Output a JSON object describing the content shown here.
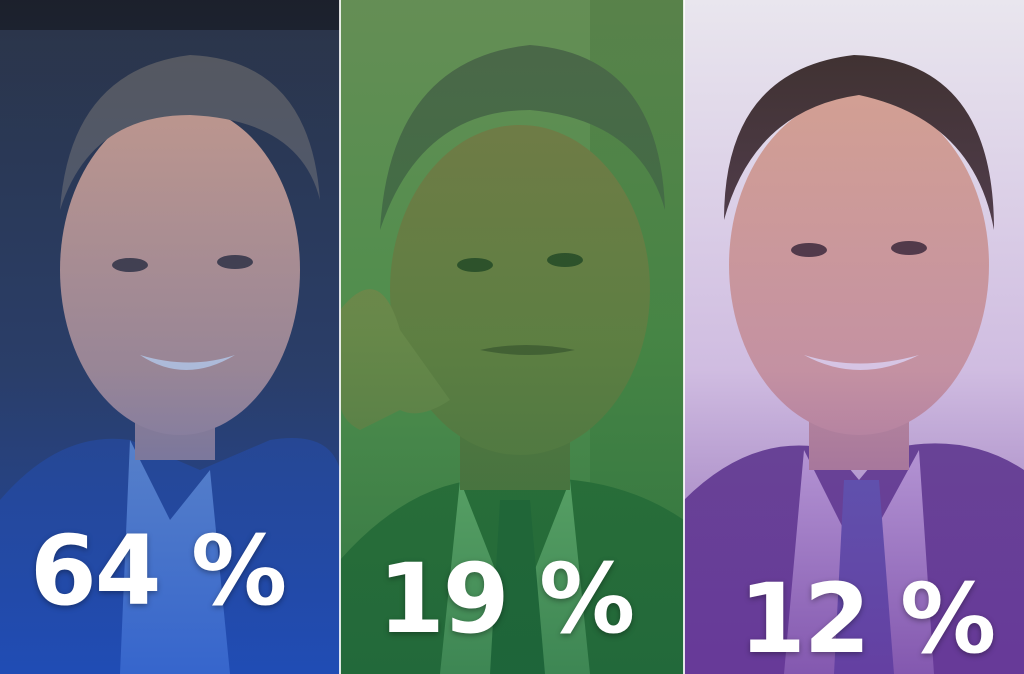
{
  "panels": [
    {
      "percentage": "64 %",
      "tint_color": "#2a5bd6",
      "subject": "man-in-blue-suit-smiling"
    },
    {
      "percentage": "19 %",
      "tint_color": "#2f8f4a",
      "subject": "man-hand-on-temple"
    },
    {
      "percentage": "12 %",
      "tint_color": "#6b3fa0",
      "subject": "man-purple-suit-smiling"
    }
  ]
}
